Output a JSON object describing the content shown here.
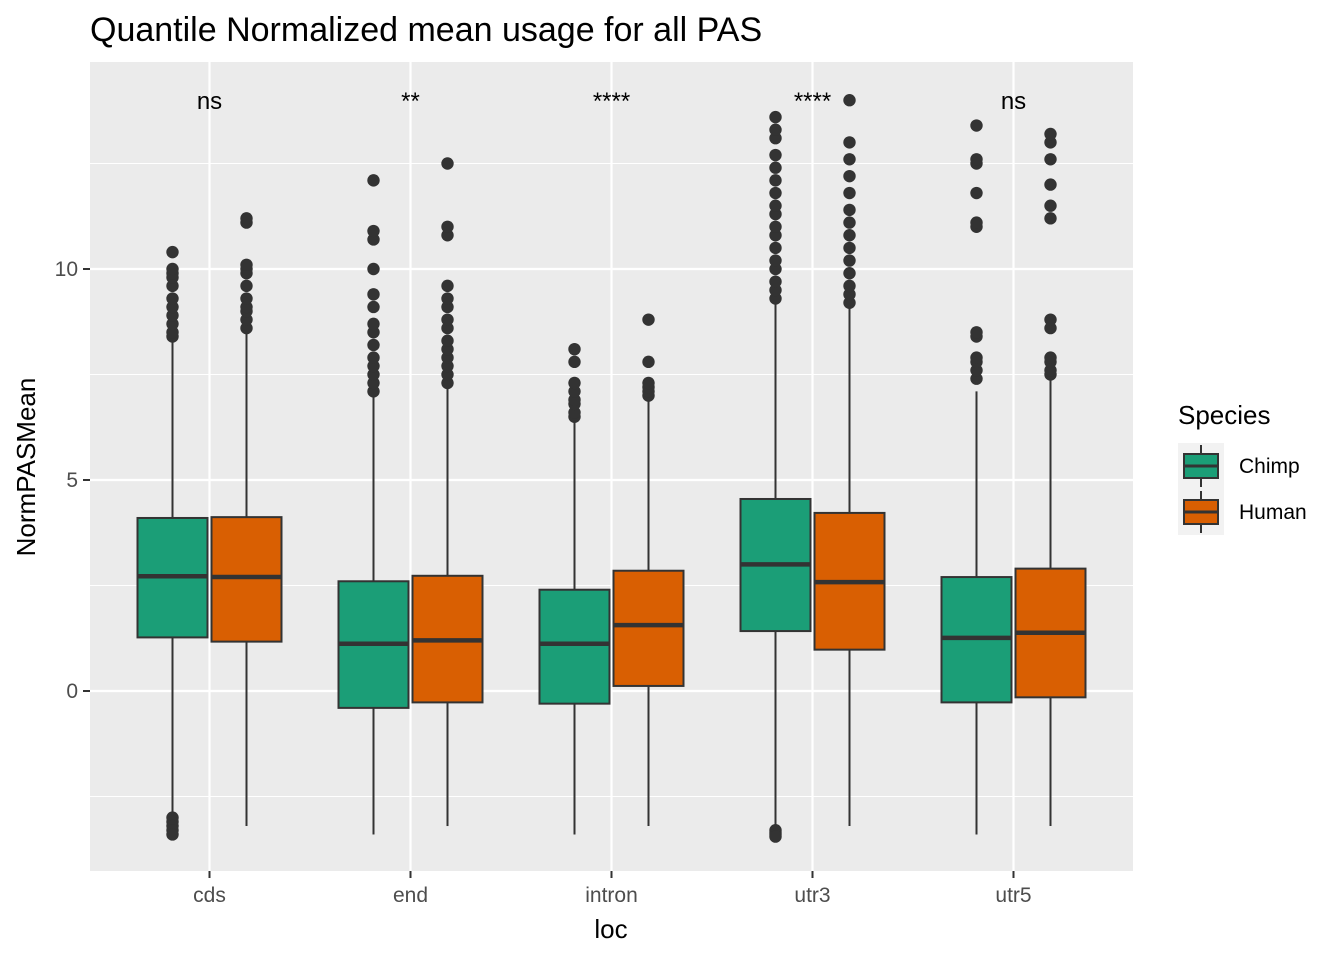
{
  "chart_data": {
    "type": "box",
    "title": "Quantile Normalized mean usage for all PAS",
    "xlabel": "loc",
    "ylabel": "NormPASMean",
    "categories": [
      "cds",
      "end",
      "intron",
      "utr3",
      "utr5"
    ],
    "yticks": [
      0,
      5,
      10
    ],
    "ytick_labels": [
      "0",
      "5",
      "10"
    ],
    "ylim": [
      -4.2,
      14.9
    ],
    "grid": true,
    "legend": {
      "title": "Species",
      "placement": "right"
    },
    "annotations": [
      "ns",
      "**",
      "****",
      "****",
      "ns"
    ],
    "series": [
      {
        "name": "Chimp",
        "color": "#1b9e77",
        "boxes": [
          {
            "whisker_low": -3.3,
            "q1": 1.27,
            "median": 2.72,
            "q3": 4.1,
            "whisker_high": 8.4,
            "outliers": [
              -3.0,
              -3.1,
              -3.2,
              -3.3,
              -3.4,
              8.4,
              8.5,
              8.7,
              8.9,
              9.1,
              9.3,
              9.6,
              9.8,
              9.9,
              10.0,
              10.4
            ]
          },
          {
            "whisker_low": -3.4,
            "q1": -0.4,
            "median": 1.12,
            "q3": 2.6,
            "whisker_high": 7.1,
            "outliers": [
              7.1,
              7.3,
              7.5,
              7.7,
              7.9,
              8.2,
              8.5,
              8.7,
              9.1,
              9.4,
              10.0,
              10.7,
              10.9,
              12.1
            ]
          },
          {
            "whisker_low": -3.4,
            "q1": -0.3,
            "median": 1.12,
            "q3": 2.4,
            "whisker_high": 6.4,
            "outliers": [
              6.5,
              6.6,
              6.8,
              6.9,
              7.1,
              7.3,
              7.8,
              8.1
            ]
          },
          {
            "whisker_low": -3.3,
            "q1": 1.42,
            "median": 3.0,
            "q3": 4.55,
            "whisker_high": 9.3,
            "outliers": [
              -3.3,
              -3.35,
              -3.4,
              -3.45,
              9.3,
              9.5,
              9.7,
              10.0,
              10.2,
              10.5,
              10.8,
              11.0,
              11.3,
              11.5,
              11.8,
              12.1,
              12.4,
              12.7,
              13.1,
              13.3,
              13.6
            ]
          },
          {
            "whisker_low": -3.4,
            "q1": -0.27,
            "median": 1.26,
            "q3": 2.7,
            "whisker_high": 7.1,
            "outliers": [
              7.4,
              7.6,
              7.8,
              7.9,
              8.4,
              8.5,
              11.0,
              11.1,
              11.8,
              12.5,
              12.6,
              13.4
            ]
          }
        ]
      },
      {
        "name": "Human",
        "color": "#d95f02",
        "boxes": [
          {
            "whisker_low": -3.2,
            "q1": 1.17,
            "median": 2.7,
            "q3": 4.12,
            "whisker_high": 8.6,
            "outliers": [
              8.6,
              8.8,
              9.0,
              9.1,
              9.3,
              9.6,
              9.9,
              10.0,
              10.1,
              11.1,
              11.2
            ]
          },
          {
            "whisker_low": -3.2,
            "q1": -0.27,
            "median": 1.2,
            "q3": 2.73,
            "whisker_high": 7.2,
            "outliers": [
              7.3,
              7.5,
              7.7,
              7.9,
              8.1,
              8.3,
              8.6,
              8.8,
              9.1,
              9.3,
              9.6,
              10.8,
              11.0,
              12.5
            ]
          },
          {
            "whisker_low": -3.2,
            "q1": 0.12,
            "median": 1.56,
            "q3": 2.85,
            "whisker_high": 6.95,
            "outliers": [
              7.0,
              7.1,
              7.2,
              7.3,
              7.8,
              8.8
            ]
          },
          {
            "whisker_low": -3.2,
            "q1": 0.98,
            "median": 2.58,
            "q3": 4.22,
            "whisker_high": 9.1,
            "outliers": [
              9.2,
              9.4,
              9.6,
              9.9,
              10.2,
              10.5,
              10.8,
              11.1,
              11.4,
              11.8,
              12.2,
              12.6,
              13.0,
              14.0
            ]
          },
          {
            "whisker_low": -3.2,
            "q1": -0.15,
            "median": 1.38,
            "q3": 2.9,
            "whisker_high": 7.5,
            "outliers": [
              7.5,
              7.6,
              7.8,
              7.9,
              8.6,
              8.8,
              11.2,
              11.5,
              12.0,
              12.6,
              13.0,
              13.2
            ]
          }
        ]
      }
    ]
  }
}
